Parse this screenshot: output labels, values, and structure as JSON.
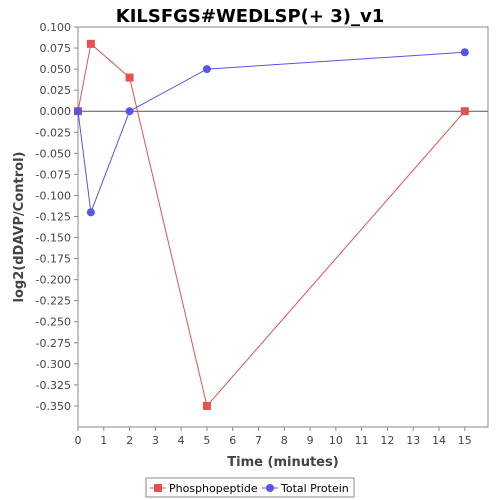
{
  "chart_data": {
    "type": "line",
    "title": "KILSFGS#WEDLSP(+ 3)_v1",
    "xlabel": "Time (minutes)",
    "ylabel": "log2(dDAVP/Control)",
    "xlim": [
      0,
      15.9
    ],
    "ylim": [
      -0.375,
      0.1
    ],
    "xticks": [
      0,
      1,
      2,
      3,
      4,
      5,
      6,
      7,
      8,
      9,
      10,
      11,
      12,
      13,
      14,
      15
    ],
    "yticks": [
      0.1,
      0.075,
      0.05,
      0.025,
      0.0,
      -0.025,
      -0.05,
      -0.075,
      -0.1,
      -0.125,
      -0.15,
      -0.175,
      -0.2,
      -0.225,
      -0.25,
      -0.275,
      -0.3,
      -0.325,
      -0.35
    ],
    "ytick_labels": [
      "0.100",
      "0.075",
      "0.050",
      "0.025",
      "0.000",
      "-0.025",
      "-0.050",
      "-0.075",
      "-0.100",
      "-0.125",
      "-0.150",
      "-0.175",
      "-0.200",
      "-0.225",
      "-0.250",
      "-0.275",
      "-0.300",
      "-0.325",
      "-0.350"
    ],
    "zero_line": true,
    "legend_position": "bottom",
    "series": [
      {
        "name": "Phosphopeptide",
        "color": "#e85050",
        "marker": "square",
        "x": [
          0,
          0.5,
          2,
          5,
          15
        ],
        "y": [
          0.0,
          0.08,
          0.04,
          -0.35,
          0.0
        ]
      },
      {
        "name": "Total Protein",
        "color": "#5555e8",
        "marker": "circle",
        "x": [
          0,
          0.5,
          2,
          5,
          15
        ],
        "y": [
          0.0,
          -0.12,
          0.0,
          0.05,
          0.07
        ]
      }
    ]
  }
}
